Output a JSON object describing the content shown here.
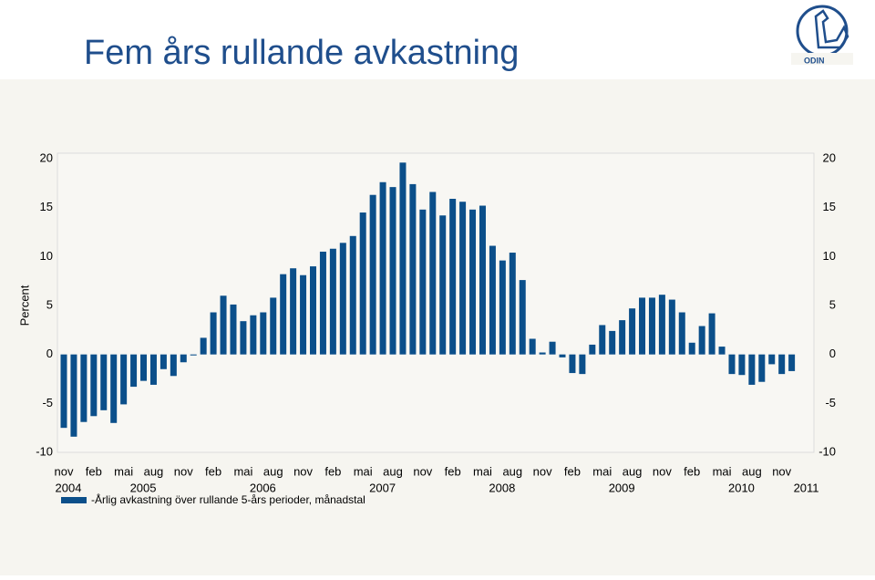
{
  "chart_data": {
    "type": "bar",
    "title": "Fem års rullande avkastning",
    "ylabel": "Percent",
    "logo_text": "ODIN",
    "categories": [
      "nov",
      null,
      null,
      "feb",
      null,
      null,
      "mai",
      null,
      null,
      "aug",
      null,
      null,
      "nov",
      null,
      null,
      "feb",
      null,
      null,
      "mai",
      null,
      null,
      "aug",
      null,
      null,
      "nov",
      null,
      null,
      "feb",
      null,
      null,
      "mai",
      null,
      null,
      "aug",
      null,
      null,
      "nov",
      null,
      null,
      "feb",
      null,
      null,
      "mai",
      null,
      null,
      "aug",
      null,
      null,
      "nov",
      null,
      null,
      "feb",
      null,
      null,
      "mai",
      null,
      null,
      "aug",
      null,
      null,
      "nov",
      null,
      null,
      "feb",
      null,
      null,
      "mai",
      null,
      null,
      "aug",
      null,
      null,
      "nov",
      null
    ],
    "years": [
      "2004",
      "2005",
      "2006",
      "2007",
      "2008",
      "2009",
      "2010",
      "2011"
    ],
    "series": [
      {
        "name": "-Årlig avkastning över rullande 5-års perioder, månadstal",
        "color": "#0b4f8a",
        "values": [
          -7.5,
          -8.4,
          -6.9,
          -6.3,
          -5.7,
          -7.0,
          -5.1,
          -3.3,
          -2.7,
          -3.1,
          -1.5,
          -2.2,
          -0.8,
          -0.1,
          1.7,
          4.3,
          6.0,
          5.1,
          3.4,
          4.0,
          4.3,
          5.8,
          8.2,
          8.8,
          8.1,
          9.0,
          10.5,
          10.8,
          11.4,
          12.1,
          14.5,
          16.3,
          17.6,
          17.1,
          19.6,
          17.4,
          14.8,
          16.6,
          14.2,
          15.9,
          15.6,
          14.8,
          15.2,
          11.1,
          9.6,
          10.4,
          7.6,
          1.6,
          0.2,
          1.3,
          -0.3,
          -1.9,
          -2.0,
          1.0,
          3.0,
          2.4,
          3.5,
          4.7,
          5.8,
          5.8,
          6.1,
          5.6,
          4.3,
          1.2,
          2.9,
          4.2,
          0.8,
          -2.0,
          -2.1,
          -3.1,
          -2.8,
          -1.0,
          -2.0,
          -1.7
        ]
      }
    ],
    "ylim": [
      -10,
      20
    ],
    "yticks": [
      -10,
      -5,
      0,
      5,
      10,
      15,
      20
    ],
    "y2ticks": [
      -10,
      -5,
      0,
      5,
      10,
      15,
      20
    ]
  }
}
